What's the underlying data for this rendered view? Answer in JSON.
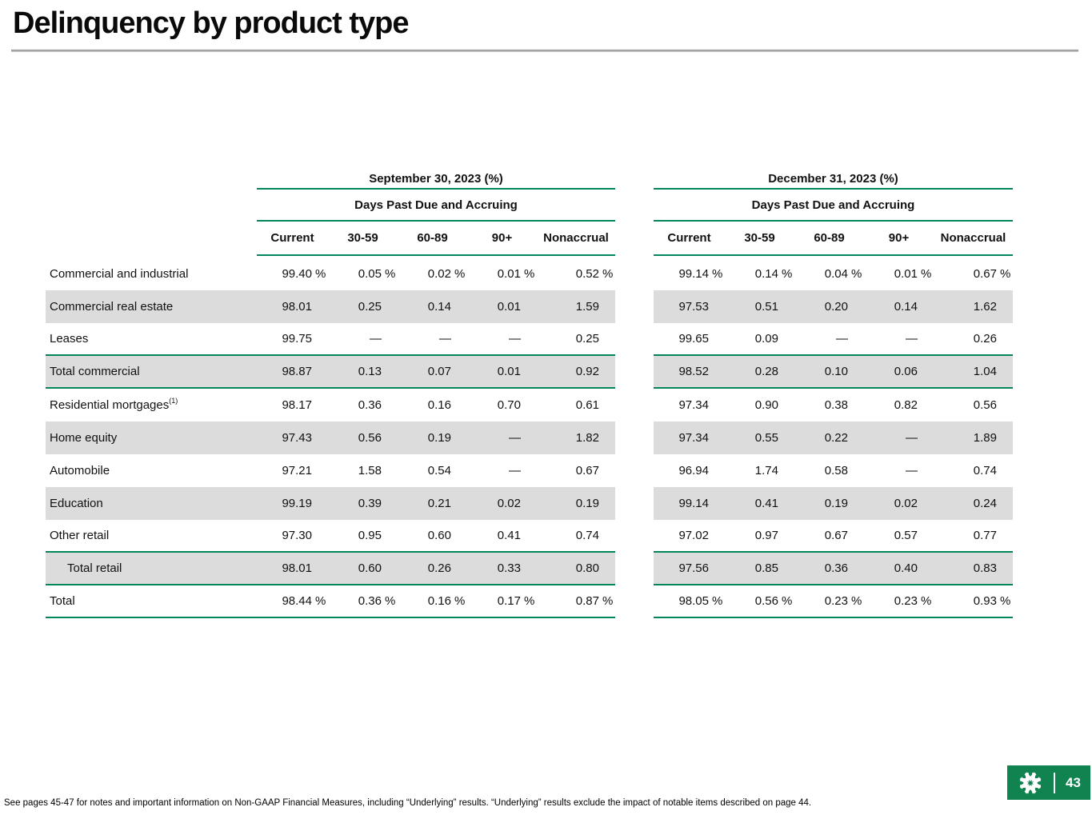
{
  "slide_title": "Delinquency by product type",
  "percent_symbol": "%",
  "page_number": "43",
  "footnote": "See pages 45-47 for notes and important information on Non-GAAP Financial Measures, including “Underlying” results.  “Underlying” results exclude the impact of notable items described on page 44.",
  "colors": {
    "accent_green": "#00855C",
    "logo_green": "#118350",
    "row_shade": "#DCDCDC",
    "title_rule_gray": "#A9A9A9"
  },
  "icons": {
    "logo": "citizens-pinwheel-logo"
  },
  "tables": [
    {
      "period": "September 30, 2023 (%)",
      "subheader": "Days Past Due and Accruing",
      "columns": [
        "Current",
        "30-59",
        "60-89",
        "90+",
        "Nonaccrual"
      ]
    },
    {
      "period": "December 31, 2023 (%)",
      "subheader": "Days Past Due and Accruing",
      "columns": [
        "Current",
        "30-59",
        "60-89",
        "90+",
        "Nonaccrual"
      ]
    }
  ],
  "rows": [
    {
      "label": "Commercial and industrial",
      "sup": "",
      "indent": false,
      "shaded": false,
      "pct": true,
      "rule_below": false,
      "left": [
        "99.40",
        "0.05",
        "0.02",
        "0.01",
        "0.52"
      ],
      "right": [
        "99.14",
        "0.14",
        "0.04",
        "0.01",
        "0.67"
      ]
    },
    {
      "label": "Commercial real estate",
      "sup": "",
      "indent": false,
      "shaded": true,
      "pct": false,
      "rule_below": false,
      "left": [
        "98.01",
        "0.25",
        "0.14",
        "0.01",
        "1.59"
      ],
      "right": [
        "97.53",
        "0.51",
        "0.20",
        "0.14",
        "1.62"
      ]
    },
    {
      "label": "Leases",
      "sup": "",
      "indent": false,
      "shaded": false,
      "pct": false,
      "rule_below": true,
      "left": [
        "99.75",
        "—",
        "—",
        "—",
        "0.25"
      ],
      "right": [
        "99.65",
        "0.09",
        "—",
        "—",
        "0.26"
      ]
    },
    {
      "label": "Total commercial",
      "sup": "",
      "indent": false,
      "shaded": true,
      "pct": false,
      "rule_below": true,
      "left": [
        "98.87",
        "0.13",
        "0.07",
        "0.01",
        "0.92"
      ],
      "right": [
        "98.52",
        "0.28",
        "0.10",
        "0.06",
        "1.04"
      ]
    },
    {
      "label": "Residential mortgages",
      "sup": "(1)",
      "indent": false,
      "shaded": false,
      "pct": false,
      "rule_below": false,
      "left": [
        "98.17",
        "0.36",
        "0.16",
        "0.70",
        "0.61"
      ],
      "right": [
        "97.34",
        "0.90",
        "0.38",
        "0.82",
        "0.56"
      ]
    },
    {
      "label": "Home equity",
      "sup": "",
      "indent": false,
      "shaded": true,
      "pct": false,
      "rule_below": false,
      "left": [
        "97.43",
        "0.56",
        "0.19",
        "—",
        "1.82"
      ],
      "right": [
        "97.34",
        "0.55",
        "0.22",
        "—",
        "1.89"
      ]
    },
    {
      "label": "Automobile",
      "sup": "",
      "indent": false,
      "shaded": false,
      "pct": false,
      "rule_below": false,
      "left": [
        "97.21",
        "1.58",
        "0.54",
        "—",
        "0.67"
      ],
      "right": [
        "96.94",
        "1.74",
        "0.58",
        "—",
        "0.74"
      ]
    },
    {
      "label": "Education",
      "sup": "",
      "indent": false,
      "shaded": true,
      "pct": false,
      "rule_below": false,
      "left": [
        "99.19",
        "0.39",
        "0.21",
        "0.02",
        "0.19"
      ],
      "right": [
        "99.14",
        "0.41",
        "0.19",
        "0.02",
        "0.24"
      ]
    },
    {
      "label": "Other retail",
      "sup": "",
      "indent": false,
      "shaded": false,
      "pct": false,
      "rule_below": true,
      "left": [
        "97.30",
        "0.95",
        "0.60",
        "0.41",
        "0.74"
      ],
      "right": [
        "97.02",
        "0.97",
        "0.67",
        "0.57",
        "0.77"
      ]
    },
    {
      "label": "Total retail",
      "sup": "",
      "indent": true,
      "shaded": true,
      "pct": false,
      "rule_below": true,
      "left": [
        "98.01",
        "0.60",
        "0.26",
        "0.33",
        "0.80"
      ],
      "right": [
        "97.56",
        "0.85",
        "0.36",
        "0.40",
        "0.83"
      ]
    },
    {
      "label": "Total",
      "sup": "",
      "indent": false,
      "shaded": false,
      "pct": true,
      "rule_below": true,
      "left": [
        "98.44",
        "0.36",
        "0.16",
        "0.17",
        "0.87"
      ],
      "right": [
        "98.05",
        "0.56",
        "0.23",
        "0.23",
        "0.93"
      ]
    }
  ]
}
